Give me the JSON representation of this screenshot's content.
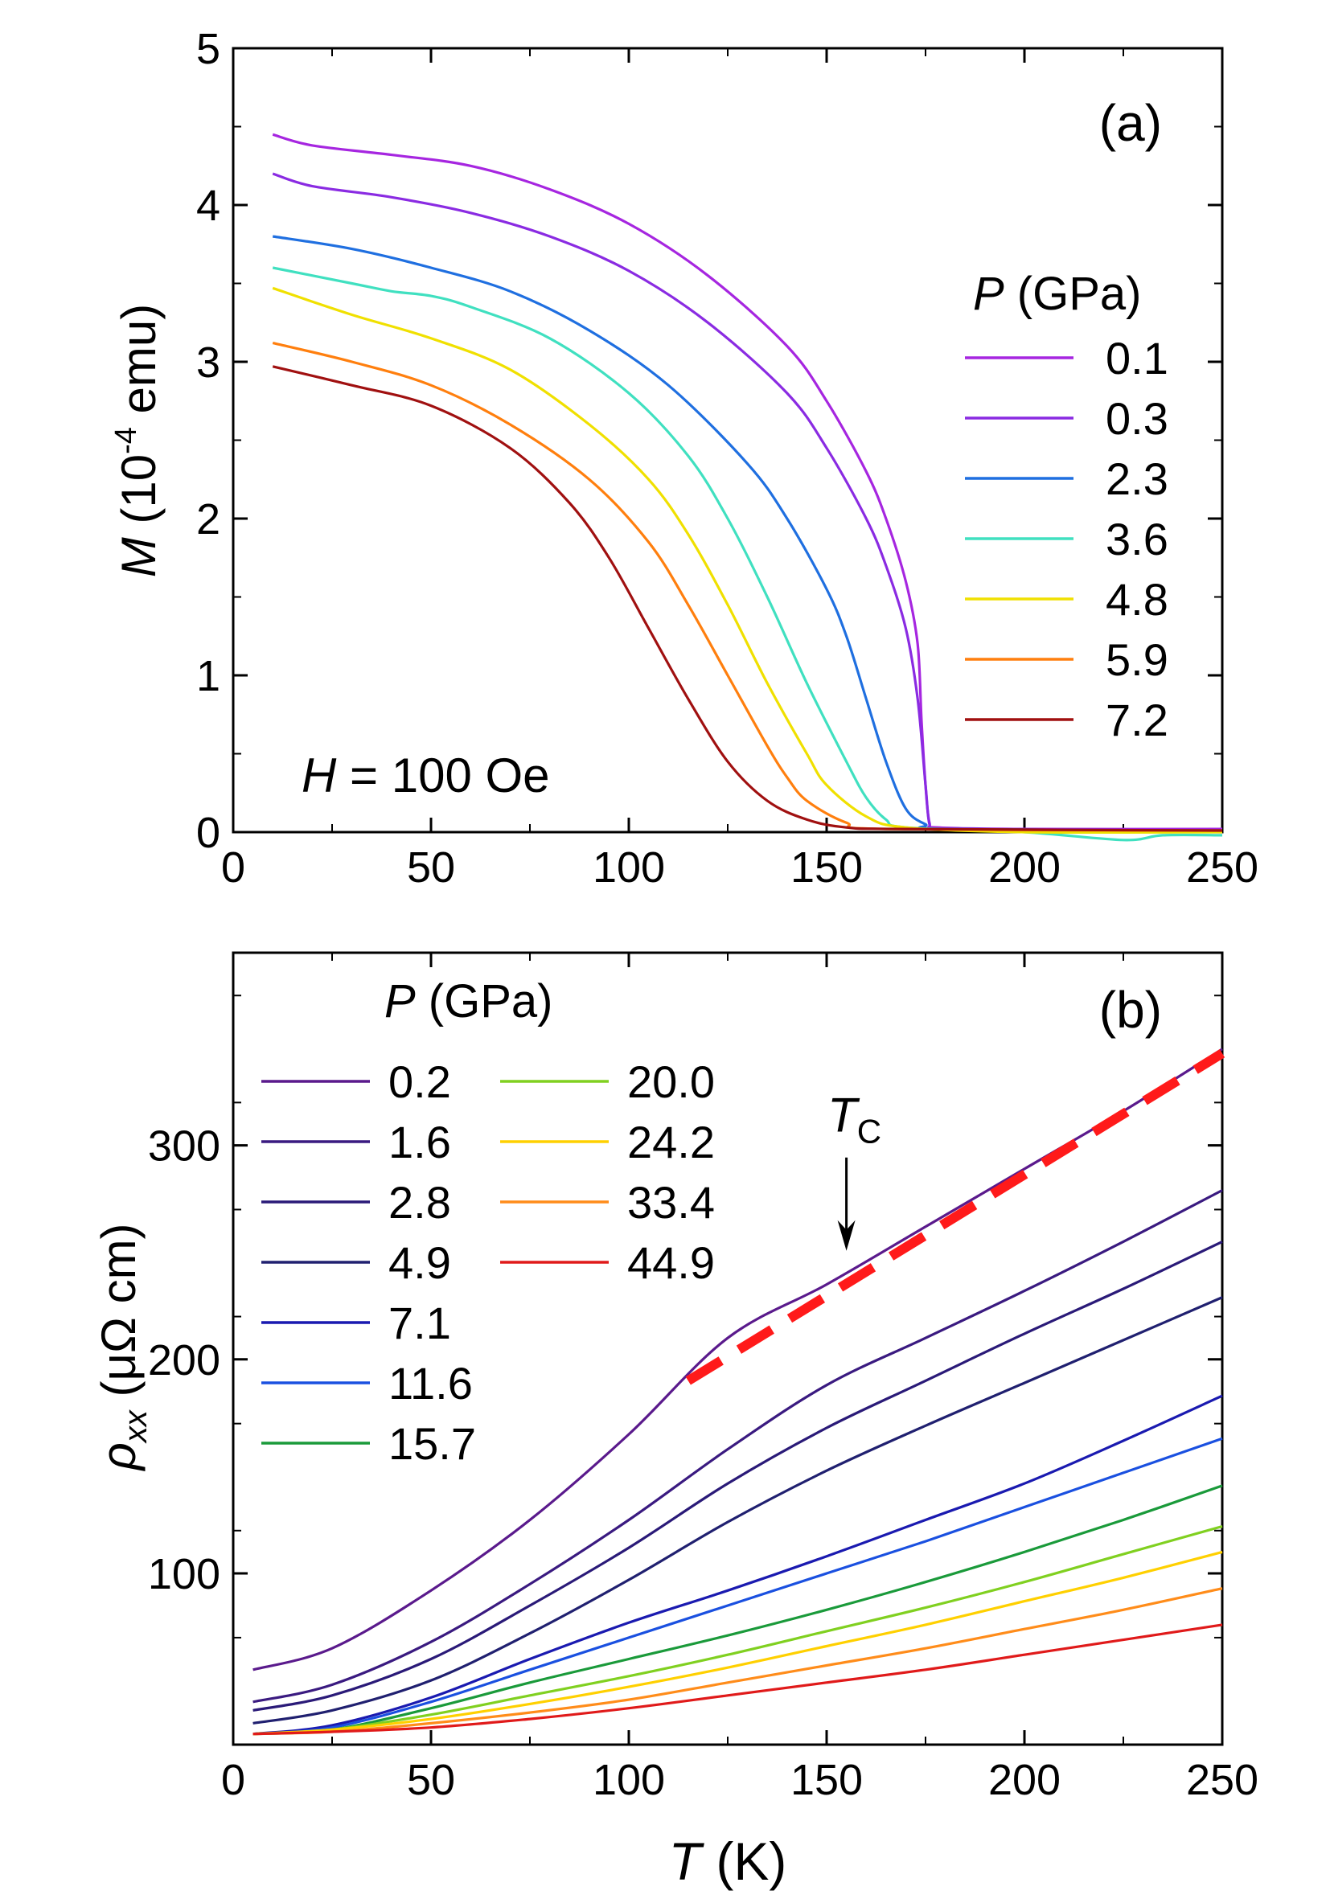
{
  "chart_data": [
    {
      "id": "a",
      "type": "line",
      "panel_label": "(a)",
      "xlim": [
        0,
        250
      ],
      "ylim": [
        0,
        5
      ],
      "xticks": [
        0,
        50,
        100,
        150,
        200,
        250
      ],
      "yticks": [
        0,
        1,
        2,
        3,
        4,
        5
      ],
      "xtick_labels": [
        "0",
        "50",
        "100",
        "150",
        "200",
        "250"
      ],
      "ytick_labels": [
        "0",
        "1",
        "2",
        "3",
        "4",
        "5"
      ],
      "ylabel": {
        "symbol": "M",
        "pre": " (10",
        "exp": "-4",
        "post": " emu)"
      },
      "annotation": {
        "symbol": "H",
        "text": " = 100 Oe"
      },
      "legend": {
        "title_symbol": "P",
        "title_text": " (GPa)",
        "placement": "right"
      },
      "series": [
        {
          "name": "0.1",
          "color": "#a626e0",
          "points": [
            [
              10,
              4.45
            ],
            [
              20,
              4.38
            ],
            [
              40,
              4.32
            ],
            [
              60,
              4.25
            ],
            [
              80,
              4.1
            ],
            [
              100,
              3.88
            ],
            [
              120,
              3.55
            ],
            [
              140,
              3.1
            ],
            [
              150,
              2.75
            ],
            [
              160,
              2.3
            ],
            [
              165,
              2.0
            ],
            [
              170,
              1.6
            ],
            [
              173,
              1.2
            ],
            [
              174,
              0.7
            ],
            [
              175,
              0.3
            ],
            [
              176,
              0.06
            ],
            [
              178,
              0.03
            ],
            [
              200,
              0.02
            ],
            [
              250,
              0.02
            ]
          ]
        },
        {
          "name": "0.3",
          "color": "#8a2be2",
          "points": [
            [
              10,
              4.2
            ],
            [
              20,
              4.12
            ],
            [
              40,
              4.05
            ],
            [
              60,
              3.95
            ],
            [
              80,
              3.8
            ],
            [
              100,
              3.58
            ],
            [
              120,
              3.25
            ],
            [
              140,
              2.8
            ],
            [
              150,
              2.45
            ],
            [
              160,
              2.0
            ],
            [
              165,
              1.7
            ],
            [
              170,
              1.3
            ],
            [
              173,
              0.85
            ],
            [
              175,
              0.3
            ],
            [
              176,
              0.05
            ],
            [
              178,
              0.02
            ],
            [
              200,
              0.01
            ],
            [
              250,
              0.0
            ]
          ]
        },
        {
          "name": "2.3",
          "color": "#1f6fe0",
          "points": [
            [
              10,
              3.8
            ],
            [
              30,
              3.72
            ],
            [
              50,
              3.6
            ],
            [
              70,
              3.45
            ],
            [
              90,
              3.2
            ],
            [
              110,
              2.85
            ],
            [
              130,
              2.35
            ],
            [
              140,
              2.0
            ],
            [
              150,
              1.55
            ],
            [
              155,
              1.25
            ],
            [
              160,
              0.85
            ],
            [
              165,
              0.45
            ],
            [
              170,
              0.15
            ],
            [
              175,
              0.05
            ],
            [
              180,
              0.02
            ],
            [
              250,
              0.01
            ]
          ]
        },
        {
          "name": "3.6",
          "color": "#40e0c0",
          "points": [
            [
              10,
              3.6
            ],
            [
              30,
              3.5
            ],
            [
              40,
              3.45
            ],
            [
              50,
              3.42
            ],
            [
              60,
              3.35
            ],
            [
              80,
              3.15
            ],
            [
              100,
              2.8
            ],
            [
              115,
              2.4
            ],
            [
              125,
              2.0
            ],
            [
              135,
              1.5
            ],
            [
              145,
              0.95
            ],
            [
              155,
              0.45
            ],
            [
              160,
              0.22
            ],
            [
              165,
              0.08
            ],
            [
              170,
              0.03
            ],
            [
              200,
              0.0
            ],
            [
              225,
              -0.05
            ],
            [
              235,
              -0.02
            ],
            [
              250,
              -0.02
            ]
          ]
        },
        {
          "name": "4.8",
          "color": "#f0e000",
          "points": [
            [
              10,
              3.47
            ],
            [
              30,
              3.3
            ],
            [
              50,
              3.15
            ],
            [
              70,
              2.95
            ],
            [
              90,
              2.6
            ],
            [
              105,
              2.25
            ],
            [
              115,
              1.9
            ],
            [
              125,
              1.45
            ],
            [
              135,
              0.95
            ],
            [
              145,
              0.5
            ],
            [
              150,
              0.3
            ],
            [
              160,
              0.1
            ],
            [
              170,
              0.03
            ],
            [
              200,
              0.0
            ],
            [
              250,
              0.0
            ]
          ]
        },
        {
          "name": "5.9",
          "color": "#ff7f0e",
          "points": [
            [
              10,
              3.12
            ],
            [
              30,
              3.0
            ],
            [
              50,
              2.85
            ],
            [
              70,
              2.6
            ],
            [
              90,
              2.25
            ],
            [
              105,
              1.85
            ],
            [
              115,
              1.45
            ],
            [
              125,
              1.0
            ],
            [
              135,
              0.55
            ],
            [
              140,
              0.35
            ],
            [
              145,
              0.2
            ],
            [
              155,
              0.06
            ],
            [
              165,
              0.02
            ],
            [
              250,
              0.01
            ]
          ]
        },
        {
          "name": "7.2",
          "color": "#a01010",
          "points": [
            [
              10,
              2.97
            ],
            [
              30,
              2.85
            ],
            [
              50,
              2.72
            ],
            [
              70,
              2.45
            ],
            [
              85,
              2.1
            ],
            [
              95,
              1.75
            ],
            [
              105,
              1.3
            ],
            [
              115,
              0.85
            ],
            [
              125,
              0.45
            ],
            [
              135,
              0.2
            ],
            [
              145,
              0.08
            ],
            [
              155,
              0.03
            ],
            [
              170,
              0.02
            ],
            [
              250,
              0.01
            ]
          ]
        }
      ]
    },
    {
      "id": "b",
      "type": "line",
      "panel_label": "(b)",
      "xlim": [
        0,
        250
      ],
      "ylim": [
        20,
        390
      ],
      "xticks": [
        0,
        50,
        100,
        150,
        200,
        250
      ],
      "yticks": [
        100,
        200,
        300
      ],
      "xtick_labels": [
        "0",
        "50",
        "100",
        "150",
        "200",
        "250"
      ],
      "ytick_labels": [
        "100",
        "200",
        "300"
      ],
      "xlabel": {
        "symbol": "T",
        "text": " (K)"
      },
      "ylabel": {
        "symbol": "ρ",
        "sub": "xx",
        "text": " (μΩ cm)"
      },
      "legend": {
        "title_symbol": "P",
        "title_text": " (GPa)",
        "placement": "top-left"
      },
      "annotation": {
        "symbol": "T",
        "sub": "C",
        "arrow_at": [
          155,
          250
        ]
      },
      "fit_line": {
        "style": "dashed",
        "color": "#ff1a1a",
        "points": [
          [
            115,
            190
          ],
          [
            250,
            343
          ]
        ]
      },
      "series": [
        {
          "name": "0.2",
          "color": "#5a1a8c",
          "points": [
            [
              5,
              55
            ],
            [
              25,
              65
            ],
            [
              50,
              92
            ],
            [
              75,
              125
            ],
            [
              100,
              165
            ],
            [
              125,
              210
            ],
            [
              150,
              235
            ],
            [
              175,
              262
            ],
            [
              200,
              289
            ],
            [
              225,
              316
            ],
            [
              250,
              345
            ]
          ]
        },
        {
          "name": "1.6",
          "color": "#3a1a80",
          "points": [
            [
              5,
              40
            ],
            [
              25,
              48
            ],
            [
              50,
              68
            ],
            [
              75,
              95
            ],
            [
              100,
              125
            ],
            [
              125,
              158
            ],
            [
              150,
              188
            ],
            [
              175,
              210
            ],
            [
              200,
              232
            ],
            [
              225,
              255
            ],
            [
              250,
              279
            ]
          ]
        },
        {
          "name": "2.8",
          "color": "#2a1a78",
          "points": [
            [
              5,
              36
            ],
            [
              25,
              43
            ],
            [
              50,
              60
            ],
            [
              75,
              85
            ],
            [
              100,
              112
            ],
            [
              125,
              142
            ],
            [
              150,
              168
            ],
            [
              175,
              190
            ],
            [
              200,
              212
            ],
            [
              225,
              233
            ],
            [
              250,
              255
            ]
          ]
        },
        {
          "name": "4.9",
          "color": "#202070",
          "points": [
            [
              5,
              30
            ],
            [
              25,
              36
            ],
            [
              50,
              50
            ],
            [
              75,
              72
            ],
            [
              100,
              97
            ],
            [
              125,
              124
            ],
            [
              150,
              148
            ],
            [
              175,
              169
            ],
            [
              200,
              189
            ],
            [
              225,
              209
            ],
            [
              250,
              229
            ]
          ]
        },
        {
          "name": "7.1",
          "color": "#1a1ab0",
          "points": [
            [
              5,
              25
            ],
            [
              25,
              29
            ],
            [
              50,
              42
            ],
            [
              75,
              60
            ],
            [
              100,
              77
            ],
            [
              125,
              92
            ],
            [
              150,
              108
            ],
            [
              175,
              125
            ],
            [
              200,
              142
            ],
            [
              225,
              162
            ],
            [
              250,
              183
            ]
          ]
        },
        {
          "name": "11.6",
          "color": "#1a50e0",
          "points": [
            [
              5,
              25
            ],
            [
              25,
              28
            ],
            [
              50,
              40
            ],
            [
              75,
              55
            ],
            [
              100,
              70
            ],
            [
              125,
              85
            ],
            [
              150,
              100
            ],
            [
              175,
              115
            ],
            [
              200,
              131
            ],
            [
              225,
              147
            ],
            [
              250,
              163
            ]
          ]
        },
        {
          "name": "15.7",
          "color": "#1a9a3a",
          "points": [
            [
              5,
              25
            ],
            [
              25,
              27
            ],
            [
              50,
              37
            ],
            [
              75,
              49
            ],
            [
              100,
              60
            ],
            [
              125,
              71
            ],
            [
              150,
              83
            ],
            [
              175,
              96
            ],
            [
              200,
              110
            ],
            [
              225,
              125
            ],
            [
              250,
              141
            ]
          ]
        },
        {
          "name": "20.0",
          "color": "#80d020",
          "points": [
            [
              5,
              25
            ],
            [
              25,
              27
            ],
            [
              50,
              34
            ],
            [
              75,
              43
            ],
            [
              100,
              52
            ],
            [
              125,
              62
            ],
            [
              150,
              73
            ],
            [
              175,
              84
            ],
            [
              200,
              96
            ],
            [
              225,
              109
            ],
            [
              250,
              122
            ]
          ]
        },
        {
          "name": "24.2",
          "color": "#ffd000",
          "points": [
            [
              5,
              25
            ],
            [
              25,
              27
            ],
            [
              50,
              32
            ],
            [
              75,
              39
            ],
            [
              100,
              47
            ],
            [
              125,
              56
            ],
            [
              150,
              66
            ],
            [
              175,
              76
            ],
            [
              200,
              87
            ],
            [
              225,
              98
            ],
            [
              250,
              110
            ]
          ]
        },
        {
          "name": "33.4",
          "color": "#ff8c1a",
          "points": [
            [
              5,
              25
            ],
            [
              25,
              26
            ],
            [
              50,
              30
            ],
            [
              75,
              35
            ],
            [
              100,
              41
            ],
            [
              125,
              49
            ],
            [
              150,
              57
            ],
            [
              175,
              65
            ],
            [
              200,
              74
            ],
            [
              225,
              83
            ],
            [
              250,
              93
            ]
          ]
        },
        {
          "name": "44.9",
          "color": "#e01a1a",
          "points": [
            [
              5,
              25
            ],
            [
              25,
              26
            ],
            [
              50,
              28
            ],
            [
              75,
              32
            ],
            [
              100,
              37
            ],
            [
              125,
              43
            ],
            [
              150,
              49
            ],
            [
              175,
              55
            ],
            [
              200,
              62
            ],
            [
              225,
              69
            ],
            [
              250,
              76
            ]
          ]
        }
      ]
    }
  ]
}
